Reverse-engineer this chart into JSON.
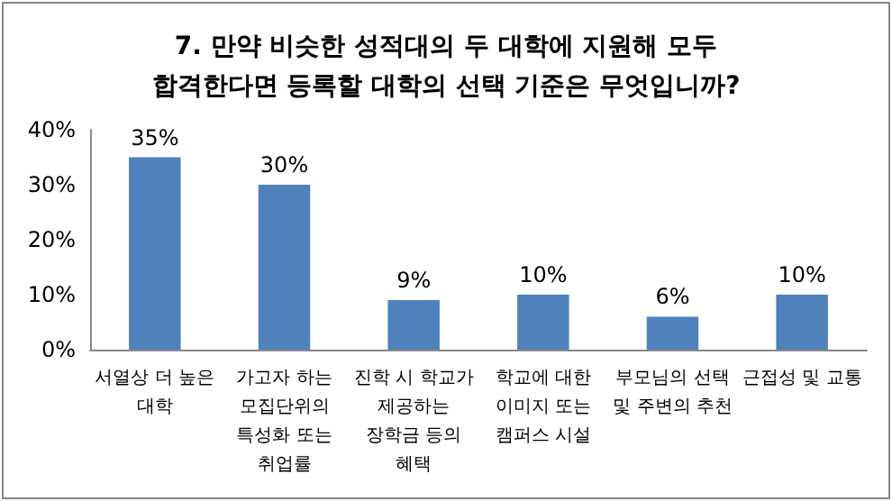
{
  "chart_data": {
    "type": "bar",
    "title": "7. 만약 비슷한 성적대의 두 대학에 지원해 모두\n합격한다면 등록할 대학의 선택 기준은 무엇입니까?",
    "categories": [
      "서열상 더 높은 대학",
      "가고자 하는 모집단위의 특성화 또는 취업률",
      "진학 시 학교가 제공하는 장학금 등의 혜택",
      "학교에 대한 이미지 또는 캠퍼스 시설",
      "부모님의 선택 및 주변의 추천",
      "근접성 및 교통"
    ],
    "values": [
      35,
      30,
      9,
      10,
      6,
      10
    ],
    "value_labels": [
      "35%",
      "30%",
      "9%",
      "10%",
      "6%",
      "10%"
    ],
    "color": "#4f81bd",
    "ylim": [
      0,
      40
    ],
    "yticks": [
      {
        "value": 0,
        "label": "0%"
      },
      {
        "value": 10,
        "label": "10%"
      },
      {
        "value": 20,
        "label": "20%"
      },
      {
        "value": 30,
        "label": "30%"
      },
      {
        "value": 40,
        "label": "40%"
      }
    ],
    "grid": false
  }
}
